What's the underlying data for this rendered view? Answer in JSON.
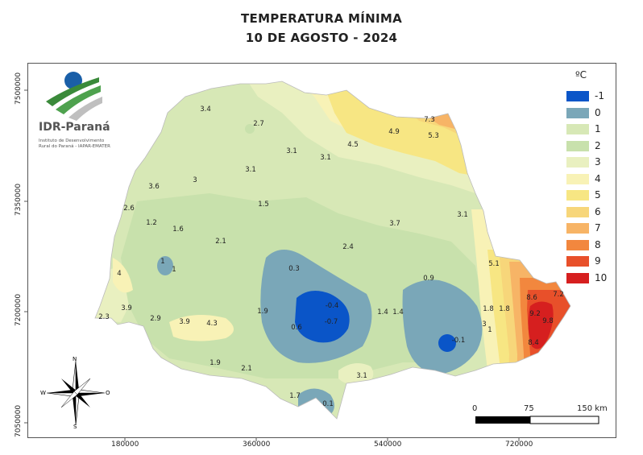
{
  "title_line1": "TEMPERATURA MÍNIMA",
  "title_line2": "10 DE AGOSTO - 2024",
  "logo": {
    "name": "IDR-Paraná",
    "subtitle1": "Instituto de Desenvolvimento",
    "subtitle2": "Rural do Paraná - IAPAR-EMATER"
  },
  "legend": {
    "title": "ºC",
    "items": [
      {
        "label": "-1",
        "color": "#0a55c8"
      },
      {
        "label": "0",
        "color": "#7aa7b8"
      },
      {
        "label": "1",
        "color": "#d7e8b6"
      },
      {
        "label": "2",
        "color": "#c8e1ac"
      },
      {
        "label": "3",
        "color": "#e9f0c0"
      },
      {
        "label": "4",
        "color": "#f8f2b6"
      },
      {
        "label": "5",
        "color": "#f7e683"
      },
      {
        "label": "6",
        "color": "#f7d67a"
      },
      {
        "label": "7",
        "color": "#f7b466"
      },
      {
        "label": "8",
        "color": "#f2873e"
      },
      {
        "label": "9",
        "color": "#e8502a"
      },
      {
        "label": "10",
        "color": "#d61f1f"
      }
    ]
  },
  "axis": {
    "x_ticks": [
      "180000",
      "360000",
      "540000",
      "720000"
    ],
    "y_ticks": [
      "7500000",
      "7350000",
      "7200000",
      "7050000"
    ]
  },
  "scale_bar": {
    "labels": [
      "0",
      "75",
      "150 km"
    ]
  },
  "compass": {
    "n": "N",
    "s": "S",
    "e": "O",
    "w": "W"
  },
  "stations": [
    {
      "v": "3.4"
    },
    {
      "v": "2.7"
    },
    {
      "v": "3.1"
    },
    {
      "v": "3.1"
    },
    {
      "v": "4.5"
    },
    {
      "v": "4.9"
    },
    {
      "v": "7.3"
    },
    {
      "v": "5.3"
    },
    {
      "v": "3.1"
    },
    {
      "v": "3.6"
    },
    {
      "v": "3"
    },
    {
      "v": "2.6"
    },
    {
      "v": "1.5"
    },
    {
      "v": "1.2"
    },
    {
      "v": "1.6"
    },
    {
      "v": "2.1"
    },
    {
      "v": "3.7"
    },
    {
      "v": "3.1"
    },
    {
      "v": "1"
    },
    {
      "v": "1"
    },
    {
      "v": "2.4"
    },
    {
      "v": "5.1"
    },
    {
      "v": "4"
    },
    {
      "v": "0.3"
    },
    {
      "v": "0.9"
    },
    {
      "v": "-0.4"
    },
    {
      "v": "-0.7"
    },
    {
      "v": "0.6"
    },
    {
      "v": "3.9"
    },
    {
      "v": "2.3"
    },
    {
      "v": "2.9"
    },
    {
      "v": "3.9"
    },
    {
      "v": "4.3"
    },
    {
      "v": "1.9"
    },
    {
      "v": "1.4"
    },
    {
      "v": "1.4"
    },
    {
      "v": "1.8"
    },
    {
      "v": "1.8"
    },
    {
      "v": "8.6"
    },
    {
      "v": "7.2"
    },
    {
      "v": "9.2"
    },
    {
      "v": "9.8"
    },
    {
      "v": "3"
    },
    {
      "v": "1"
    },
    {
      "v": "-0.1"
    },
    {
      "v": "8.4"
    },
    {
      "v": "1.9"
    },
    {
      "v": "2.1"
    },
    {
      "v": "3.1"
    },
    {
      "v": "1.7"
    },
    {
      "v": "0.1"
    }
  ]
}
